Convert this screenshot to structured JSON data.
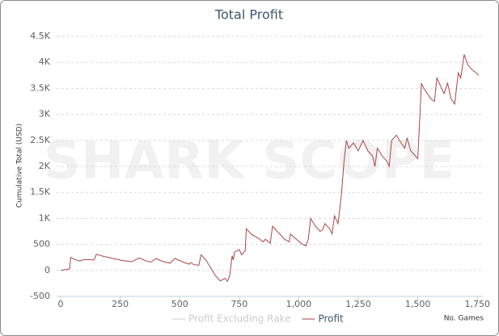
{
  "chart_data": {
    "type": "line",
    "title": "Total Profit",
    "watermark": "SHARK SCOPE",
    "y_label": "Cumulative Total (USD)",
    "x_label": "No. Games",
    "xlim": [
      -17,
      1773
    ],
    "ylim": [
      -500,
      4500
    ],
    "xticks": [
      0,
      250,
      500,
      750,
      {
        "value": 1000,
        "label": "1,000"
      },
      {
        "value": 1250,
        "label": "1,250"
      },
      {
        "value": 1500,
        "label": "1,500"
      },
      {
        "value": 1750,
        "label": "1,750"
      }
    ],
    "yticks": [
      {
        "value": -500,
        "label": "-500"
      },
      0,
      500,
      {
        "value": 1000,
        "label": "1K"
      },
      {
        "value": 1500,
        "label": "1.5K"
      },
      {
        "value": 2000,
        "label": "2K"
      },
      {
        "value": 2500,
        "label": "2.5K"
      },
      {
        "value": 3000,
        "label": "3K"
      },
      {
        "value": 3500,
        "label": "3.5K"
      },
      {
        "value": 4000,
        "label": "4K"
      },
      {
        "value": 4500,
        "label": "4.5K"
      }
    ],
    "grid": true,
    "series": [
      {
        "name": "Profit Excluding Rake",
        "color": "#cccccc",
        "visible": false,
        "x": [],
        "values": []
      },
      {
        "name": "Profit",
        "color": "#aa4643",
        "visible": true,
        "x": [
          0,
          30,
          38,
          42,
          60,
          80,
          100,
          140,
          150,
          180,
          220,
          260,
          300,
          330,
          360,
          380,
          400,
          430,
          460,
          480,
          520,
          540,
          545,
          560,
          580,
          590,
          610,
          630,
          650,
          670,
          690,
          700,
          710,
          720,
          725,
          730,
          750,
          760,
          775,
          780,
          800,
          830,
          850,
          860,
          880,
          890,
          910,
          940,
          960,
          965,
          990,
          1010,
          1030,
          1040,
          1050,
          1070,
          1090,
          1100,
          1110,
          1130,
          1140,
          1150,
          1165,
          1170,
          1180,
          1190,
          1200,
          1210,
          1230,
          1250,
          1270,
          1290,
          1310,
          1320,
          1330,
          1350,
          1370,
          1380,
          1390,
          1410,
          1430,
          1445,
          1455,
          1470,
          1490,
          1500,
          1510,
          1515,
          1525,
          1540,
          1555,
          1570,
          1580,
          1595,
          1610,
          1625,
          1640,
          1655,
          1660,
          1670,
          1680,
          1695,
          1710,
          1730,
          1745,
          1755
        ],
        "values": [
          0,
          20,
          30,
          250,
          210,
          180,
          210,
          200,
          310,
          270,
          230,
          190,
          170,
          240,
          180,
          160,
          230,
          170,
          140,
          230,
          150,
          120,
          150,
          110,
          100,
          300,
          200,
          50,
          -100,
          -200,
          -150,
          -210,
          -100,
          280,
          200,
          350,
          400,
          300,
          380,
          800,
          700,
          620,
          550,
          600,
          520,
          850,
          750,
          600,
          550,
          700,
          600,
          520,
          470,
          600,
          1000,
          850,
          750,
          780,
          900,
          800,
          700,
          1050,
          900,
          1100,
          1500,
          2100,
          2500,
          2350,
          2450,
          2300,
          2500,
          2300,
          2200,
          2000,
          2350,
          2200,
          2100,
          2000,
          2500,
          2600,
          2450,
          2350,
          2550,
          2300,
          2200,
          2150,
          3100,
          3600,
          3500,
          3400,
          3300,
          3250,
          3700,
          3550,
          3400,
          3600,
          3300,
          3200,
          3400,
          3800,
          3700,
          4150,
          3950,
          3850,
          3800,
          3750
        ]
      }
    ]
  }
}
